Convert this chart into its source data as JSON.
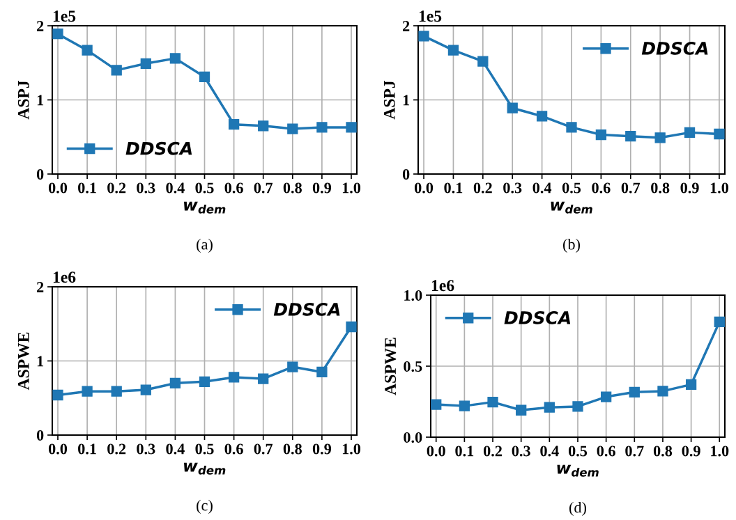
{
  "chart_data": [
    {
      "type": "line",
      "ylabel": "ASPJ",
      "xlabel": "w$_{dem}$",
      "x": [
        0.0,
        0.1,
        0.2,
        0.3,
        0.4,
        0.5,
        0.6,
        0.7,
        0.8,
        0.9,
        1.0
      ],
      "xlim": [
        -0.019,
        1.019
      ],
      "xticks": [
        {
          "value": 0.0,
          "label": "0.0"
        },
        {
          "value": 0.1,
          "label": "0.1"
        },
        {
          "value": 0.2,
          "label": "0.2"
        },
        {
          "value": 0.3,
          "label": "0.3"
        },
        {
          "value": 0.4,
          "label": "0.4"
        },
        {
          "value": 0.5,
          "label": "0.5"
        },
        {
          "value": 0.6,
          "label": "0.6"
        },
        {
          "value": 0.7,
          "label": "0.7"
        },
        {
          "value": 0.8,
          "label": "0.8"
        },
        {
          "value": 0.9,
          "label": "0.9"
        },
        {
          "value": 1.0,
          "label": "1.0"
        }
      ],
      "ylim": [
        0,
        2
      ],
      "yticks": [
        0,
        1,
        2
      ],
      "grid": true,
      "legend": "lower left",
      "marker": "square",
      "annotations": [
        "1e5",
        "(a)"
      ],
      "series": [
        {
          "name": "DDSCA",
          "color": "#1f77b4",
          "values": [
            1.89,
            1.67,
            1.4,
            1.49,
            1.56,
            1.31,
            0.67,
            0.65,
            0.61,
            0.63,
            0.63
          ]
        }
      ]
    },
    {
      "type": "line",
      "ylabel": "ASPJ",
      "xlabel": "w$_{dem}$",
      "x": [
        0.0,
        0.1,
        0.2,
        0.3,
        0.4,
        0.5,
        0.6,
        0.7,
        0.8,
        0.9,
        1.0
      ],
      "xlim": [
        -0.019,
        1.019
      ],
      "xticks": [
        {
          "value": 0.0,
          "label": "0.0"
        },
        {
          "value": 0.1,
          "label": "0.1"
        },
        {
          "value": 0.2,
          "label": "0.2"
        },
        {
          "value": 0.3,
          "label": "0.3"
        },
        {
          "value": 0.4,
          "label": "0.4"
        },
        {
          "value": 0.5,
          "label": "0.5"
        },
        {
          "value": 0.6,
          "label": "0.6"
        },
        {
          "value": 0.7,
          "label": "0.7"
        },
        {
          "value": 0.8,
          "label": "0.8"
        },
        {
          "value": 0.9,
          "label": "0.9"
        },
        {
          "value": 1.0,
          "label": "1.0"
        }
      ],
      "ylim": [
        0,
        2
      ],
      "yticks": [
        0,
        1,
        2
      ],
      "grid": true,
      "legend": "top right",
      "marker": "square",
      "annotations": [
        "1e5",
        "(b)"
      ],
      "series": [
        {
          "name": "DDSCA",
          "color": "#1f77b4",
          "values": [
            1.86,
            1.67,
            1.52,
            0.89,
            0.78,
            0.63,
            0.53,
            0.51,
            0.49,
            0.56,
            0.54
          ]
        }
      ]
    },
    {
      "type": "line",
      "ylabel": "ASPWE",
      "xlabel": "w$_{dem}$",
      "x": [
        0.0,
        0.1,
        0.2,
        0.3,
        0.4,
        0.5,
        0.6,
        0.7,
        0.8,
        0.9,
        1.0
      ],
      "xlim": [
        -0.019,
        1.019
      ],
      "xticks": [
        {
          "value": 0.0,
          "label": "0.0"
        },
        {
          "value": 0.1,
          "label": "0.1"
        },
        {
          "value": 0.2,
          "label": "0.2"
        },
        {
          "value": 0.3,
          "label": "0.3"
        },
        {
          "value": 0.4,
          "label": "0.4"
        },
        {
          "value": 0.5,
          "label": "0.5"
        },
        {
          "value": 0.6,
          "label": "0.6"
        },
        {
          "value": 0.7,
          "label": "0.7"
        },
        {
          "value": 0.8,
          "label": "0.8"
        },
        {
          "value": 0.9,
          "label": "0.9"
        },
        {
          "value": 1.0,
          "label": "1.0"
        }
      ],
      "ylim": [
        0,
        2
      ],
      "yticks": [
        0,
        1,
        2
      ],
      "grid": true,
      "legend": "top right",
      "marker": "square",
      "annotations": [
        "1e6",
        "(c)"
      ],
      "series": [
        {
          "name": "DDSCA",
          "color": "#1f77b4",
          "values": [
            0.54,
            0.59,
            0.59,
            0.61,
            0.7,
            0.72,
            0.78,
            0.76,
            0.92,
            0.85,
            1.46
          ]
        }
      ]
    },
    {
      "type": "line",
      "ylabel": "ASPWE",
      "xlabel": "w$_{dem}$",
      "x": [
        0.0,
        0.1,
        0.2,
        0.3,
        0.4,
        0.5,
        0.6,
        0.7,
        0.8,
        0.9,
        1.0
      ],
      "xlim": [
        -0.019,
        1.019
      ],
      "xticks": [
        {
          "value": 0.0,
          "label": "0.0"
        },
        {
          "value": 0.1,
          "label": "0.1"
        },
        {
          "value": 0.2,
          "label": "0.2"
        },
        {
          "value": 0.3,
          "label": "0.3"
        },
        {
          "value": 0.4,
          "label": "0.4"
        },
        {
          "value": 0.5,
          "label": "0.5"
        },
        {
          "value": 0.6,
          "label": "0.6"
        },
        {
          "value": 0.7,
          "label": "0.7"
        },
        {
          "value": 0.8,
          "label": "0.8"
        },
        {
          "value": 0.9,
          "label": "0.9"
        },
        {
          "value": 1.0,
          "label": "1.0"
        }
      ],
      "ylim": [
        0,
        1.0
      ],
      "yticks": [
        {
          "value": 0.0,
          "label": "0.0"
        },
        {
          "value": 0.5,
          "label": "0.5"
        },
        {
          "value": 1.0,
          "label": "1.0"
        }
      ],
      "grid": true,
      "legend": "top left",
      "marker": "square",
      "annotations": [
        "1e6",
        "(d)"
      ],
      "series": [
        {
          "name": "DDSCA",
          "color": "#1f77b4",
          "values": [
            0.23,
            0.22,
            0.247,
            0.19,
            0.21,
            0.216,
            0.284,
            0.317,
            0.324,
            0.371,
            0.812
          ]
        }
      ]
    }
  ]
}
